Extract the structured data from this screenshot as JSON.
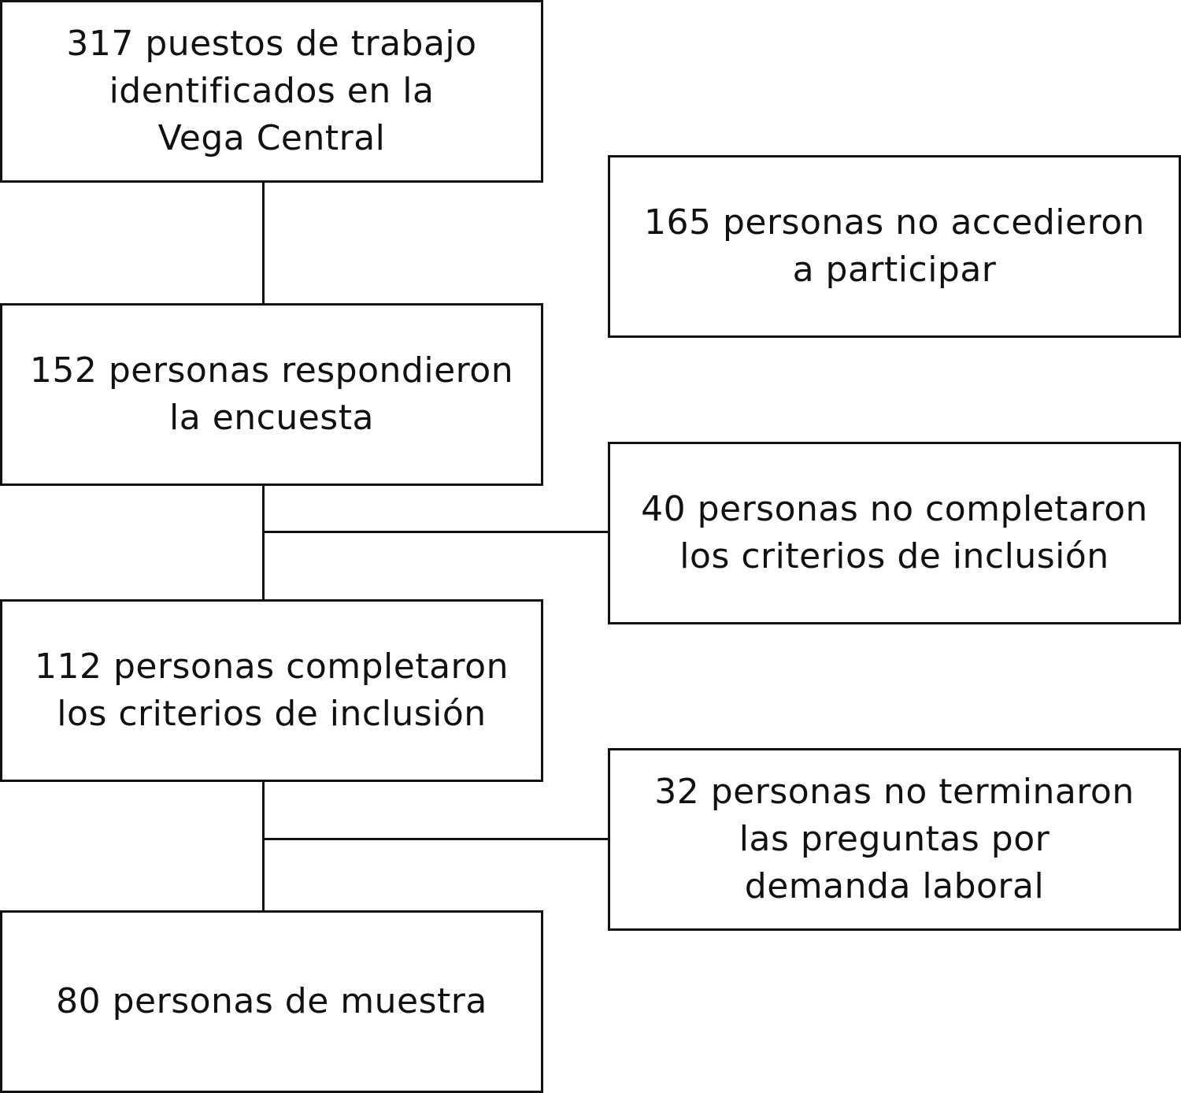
{
  "diagram": {
    "left_boxes": [
      {
        "lines": [
          "317 puestos de trabajo",
          "identificados en la",
          "Vega Central"
        ]
      },
      {
        "lines": [
          "152 personas respondieron",
          "la encuesta"
        ]
      },
      {
        "lines": [
          "112 personas completaron",
          "los criterios de inclusión"
        ]
      },
      {
        "lines": [
          "80 personas de muestra"
        ]
      }
    ],
    "right_boxes": [
      {
        "lines": [
          "165 personas no accedieron",
          "a participar"
        ]
      },
      {
        "lines": [
          "40 personas no completaron",
          "los criterios de inclusión"
        ]
      },
      {
        "lines": [
          "32 personas no terminaron",
          "las preguntas por",
          "demanda laboral"
        ]
      }
    ]
  }
}
